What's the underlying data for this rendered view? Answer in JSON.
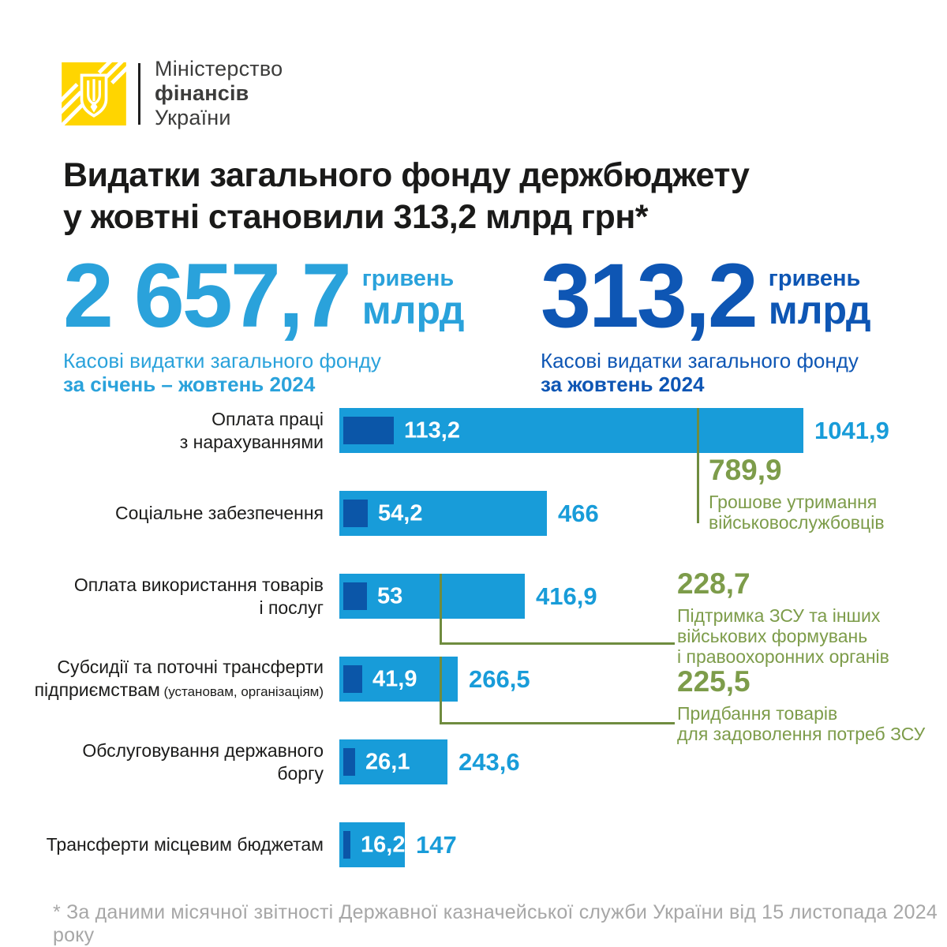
{
  "brand": {
    "line1": "Міністерство",
    "line2": "фінансів",
    "line3": "України"
  },
  "title": {
    "line1": "Видатки загального фонду держбюджету",
    "line2": "у жовтні становили 313,2 млрд грн*"
  },
  "stats": {
    "left": {
      "value": "2 657,7",
      "unit_top": "гривень",
      "unit_bottom": "млрд",
      "caption": "Касові видатки загального фонду",
      "period": "за січень – жовтень 2024"
    },
    "right": {
      "value": "313,2",
      "unit_top": "гривень",
      "unit_bottom": "млрд",
      "caption": "Касові видатки загального фонду",
      "period": "за жовтень 2024"
    }
  },
  "chart": {
    "rows": [
      {
        "l1": "Оплата праці",
        "l2": "з нарахуваннями",
        "inner_label": "113,2",
        "outer_label": "1041,9"
      },
      {
        "l1": "Соціальне забезпечення",
        "inner_label": "54,2",
        "outer_label": "466"
      },
      {
        "l1": "Оплата використання товарів",
        "l2": "і послуг",
        "inner_label": "53",
        "outer_label": "416,9"
      },
      {
        "l1": "Субсидії та поточні трансферти",
        "l2": "підприємствам",
        "l2_small": "(установам, організаціям)",
        "inner_label": "41,9",
        "outer_label": "266,5"
      },
      {
        "l1": "Обслуговування державного",
        "l2": "боргу",
        "inner_label": "26,1",
        "outer_label": "243,6"
      },
      {
        "l1": "Трансферти місцевим бюджетам",
        "inner_label": "16,2",
        "outer_label": "147"
      }
    ]
  },
  "annotations": [
    {
      "value": "789,9",
      "text": "Грошове утримання\nвійськовослужбовців"
    },
    {
      "value": "228,7",
      "text": "Підтримка ЗСУ та інших\nвійськових формувань\nі правоохоронних органів"
    },
    {
      "value": "225,5",
      "text": "Придбання товарів\nдля задоволення потреб ЗСУ"
    }
  ],
  "footnote": "* За даними місячної звітності Державної казначейської служби України від 15 листопада 2024 року",
  "colors": {
    "bar_light_blue": "#189cd9",
    "bar_dark_blue": "#0b56a8",
    "stat_left_blue": "#2aa2db",
    "stat_right_blue": "#0e56b4",
    "olive_text": "#7d9c4a",
    "olive_line": "#6f8c3f",
    "logo_yellow": "#ffd500",
    "footnote_gray": "#a7a7a7"
  },
  "chart_data": {
    "type": "bar",
    "orientation": "horizontal",
    "title": "Видатки загального фонду держбюджету у жовтні становили 313,2 млрд грн*",
    "unit": "млрд грн",
    "categories": [
      "Оплата праці з нарахуваннями",
      "Соціальне забезпечення",
      "Оплата використання товарів і послуг",
      "Субсидії та поточні трансферти підприємствам (установам, організаціям)",
      "Обслуговування державного боргу",
      "Трансферти місцевим бюджетам"
    ],
    "series": [
      {
        "name": "Касові видатки загального фонду за жовтень 2024",
        "total": 313.2,
        "values": [
          113.2,
          54.2,
          53,
          41.9,
          26.1,
          16.2
        ]
      },
      {
        "name": "Касові видатки загального фонду за січень – жовтень 2024",
        "total": 2657.7,
        "values": [
          1041.9,
          466,
          416.9,
          266.5,
          243.6,
          147
        ]
      }
    ],
    "annotations": [
      {
        "value": 789.9,
        "label": "Грошове утримання військовослужбовців",
        "attached_to": "Оплата праці з нарахуваннями"
      },
      {
        "value": 228.7,
        "label": "Підтримка ЗСУ та інших військових формувань і правоохоронних органів",
        "attached_to": "Оплата використання товарів і послуг"
      },
      {
        "value": 225.5,
        "label": "Придбання товарів для задоволення потреб ЗСУ",
        "attached_to": "Субсидії та поточні трансферти підприємствам"
      }
    ],
    "legend_position": "none",
    "grid": false,
    "source_note": "* За даними місячної звітності Державної казначейської служби України від 15 листопада 2024 року"
  }
}
